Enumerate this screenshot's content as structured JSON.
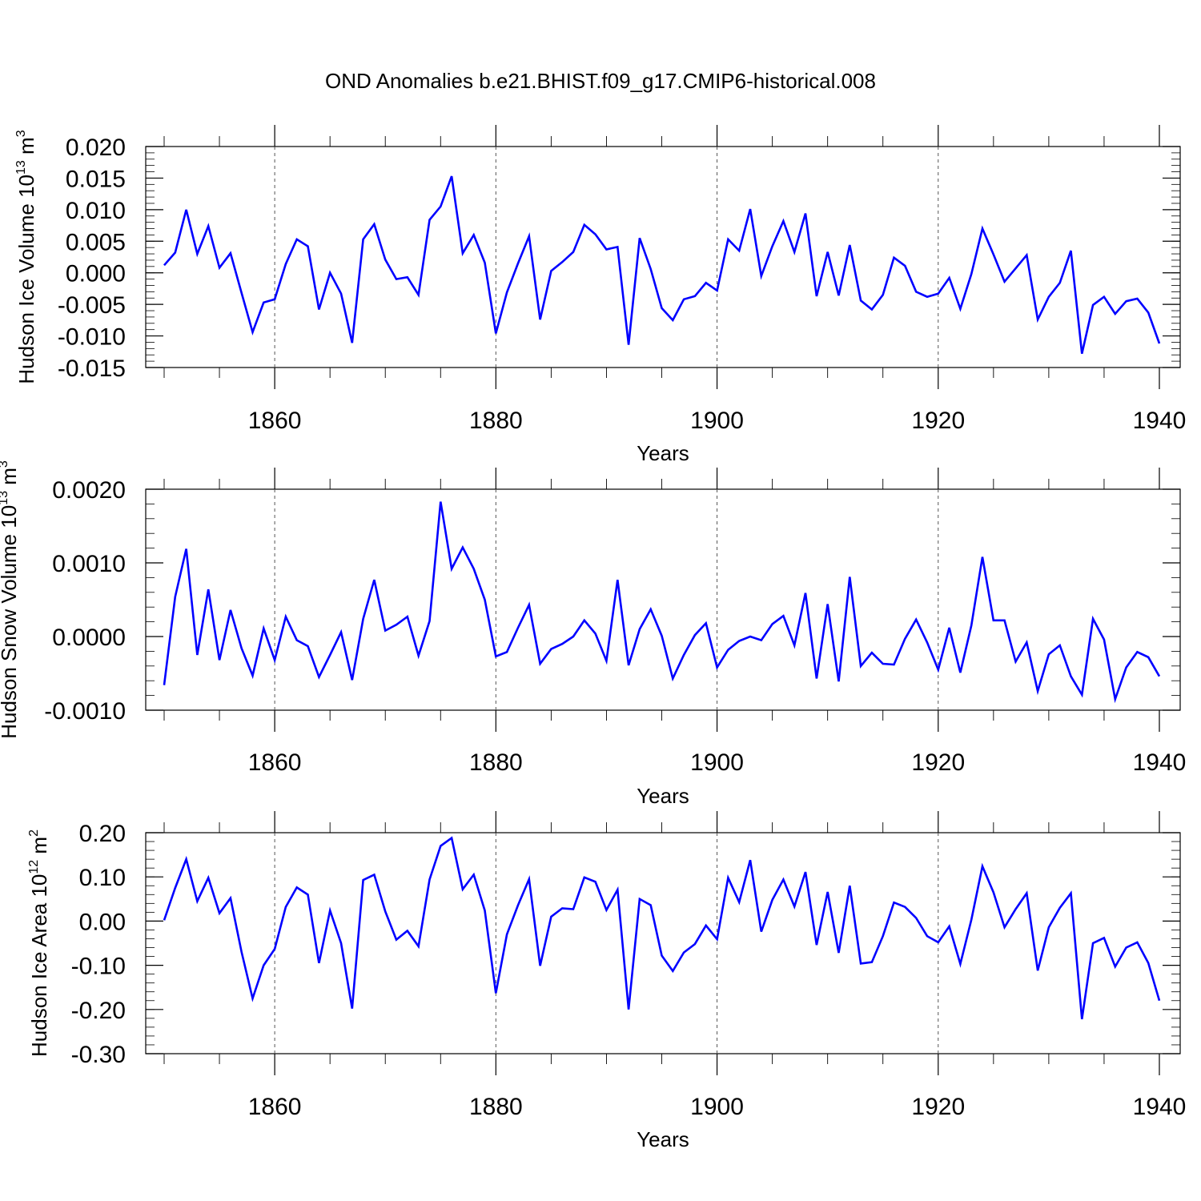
{
  "figure": {
    "title": "OND Anomalies b.e21.BHIST.f09_g17.CMIP6-historical.008",
    "line_color": "#0000ff"
  },
  "chart_data": [
    {
      "type": "line",
      "title": "OND Anomalies b.e21.BHIST.f09_g17.CMIP6-historical.008",
      "ylabel": "Hudson Ice Volume 10",
      "ylabel_exp": "13",
      "ylabel_unit": " m",
      "ylabel_unit_exp": "3",
      "xlabel": "Years",
      "xlim": [
        1850,
        1940
      ],
      "ylim": [
        -0.015,
        0.02
      ],
      "yticks": [
        -0.015,
        -0.01,
        -0.005,
        0.0,
        0.005,
        0.01,
        0.015,
        0.02
      ],
      "ytick_labels": [
        "-0.015",
        "-0.010",
        "-0.005",
        "0.000",
        "0.005",
        "0.010",
        "0.015",
        "0.020"
      ],
      "yminor_step": 0.001,
      "xticks": [
        1860,
        1880,
        1900,
        1920,
        1940
      ],
      "xtick_labels": [
        "1860",
        "1880",
        "1900",
        "1920",
        "1940"
      ],
      "gridlines_x": [
        1860,
        1880,
        1900,
        1920
      ],
      "x_start": 1850,
      "values": [
        0.0012,
        0.0032,
        0.01,
        0.003,
        0.0074,
        0.0008,
        0.0031,
        -0.0032,
        -0.0094,
        -0.0047,
        -0.0042,
        0.0014,
        0.0053,
        0.0042,
        -0.0058,
        0.0,
        -0.0033,
        -0.0111,
        0.0053,
        0.0077,
        0.0021,
        -0.001,
        -0.0007,
        -0.0035,
        0.0084,
        0.0105,
        0.0153,
        0.0031,
        0.006,
        0.0016,
        -0.0096,
        -0.0031,
        0.0015,
        0.0058,
        -0.0074,
        0.0003,
        0.0017,
        0.0033,
        0.0076,
        0.0061,
        0.0037,
        0.0041,
        -0.0114,
        0.0055,
        0.0006,
        -0.0056,
        -0.0075,
        -0.0042,
        -0.0037,
        -0.0016,
        -0.0028,
        0.0053,
        0.0035,
        0.0101,
        -0.0005,
        0.0042,
        0.0082,
        0.0033,
        0.0094,
        -0.0037,
        0.0033,
        -0.0036,
        0.0044,
        -0.0044,
        -0.0058,
        -0.0035,
        0.0024,
        0.0011,
        -0.003,
        -0.0038,
        -0.0033,
        -0.0008,
        -0.0057,
        -0.0002,
        0.007,
        0.0029,
        -0.0014,
        0.0007,
        0.0028,
        -0.0074,
        -0.0038,
        -0.0016,
        0.0035,
        -0.0128,
        -0.0051,
        -0.0038,
        -0.0065,
        -0.0045,
        -0.0041,
        -0.0063,
        -0.0112
      ]
    },
    {
      "type": "line",
      "ylabel": "Hudson Snow Volume 10",
      "ylabel_exp": "13",
      "ylabel_unit": " m",
      "ylabel_unit_exp": "3",
      "xlabel": "Years",
      "xlim": [
        1850,
        1940
      ],
      "ylim": [
        -0.001,
        0.002
      ],
      "yticks": [
        -0.001,
        0.0,
        0.001,
        0.002
      ],
      "ytick_labels": [
        "-0.0010",
        "0.0000",
        "0.0010",
        "0.0020"
      ],
      "yminor_step": 0.0002,
      "xticks": [
        1860,
        1880,
        1900,
        1920,
        1940
      ],
      "xtick_labels": [
        "1860",
        "1880",
        "1900",
        "1920",
        "1940"
      ],
      "gridlines_x": [
        1860,
        1880,
        1900,
        1920
      ],
      "x_start": 1850,
      "values": [
        -0.00066,
        0.00054,
        0.00119,
        -0.00025,
        0.00064,
        -0.00032,
        0.00036,
        -0.00016,
        -0.00053,
        0.00011,
        -0.00032,
        0.00027,
        -5e-05,
        -0.00013,
        -0.00055,
        -0.00025,
        6e-05,
        -0.00059,
        0.00024,
        0.00077,
        8e-05,
        0.00016,
        0.00027,
        -0.00026,
        0.00021,
        0.00183,
        0.00092,
        0.00121,
        0.00092,
        0.0005,
        -0.00027,
        -0.00021,
        0.00012,
        0.00043,
        -0.00037,
        -0.00017,
        -0.0001,
        0.0,
        0.00022,
        4e-05,
        -0.00033,
        0.00077,
        -0.00039,
        0.0001,
        0.00037,
        1e-05,
        -0.00057,
        -0.00025,
        2e-05,
        0.00018,
        -0.00042,
        -0.00018,
        -6e-05,
        0.0,
        -5e-05,
        0.00017,
        0.00028,
        -0.00012,
        0.00059,
        -0.00057,
        0.00044,
        -0.00061,
        0.00081,
        -0.0004,
        -0.00022,
        -0.00037,
        -0.00038,
        -3e-05,
        0.00023,
        -8e-05,
        -0.00045,
        0.00012,
        -0.00049,
        0.00015,
        0.00108,
        0.00022,
        0.00022,
        -0.00034,
        -8e-05,
        -0.00074,
        -0.00024,
        -0.00012,
        -0.00054,
        -0.00079,
        0.00024,
        -4e-05,
        -0.00085,
        -0.00042,
        -0.00021,
        -0.00028,
        -0.00054
      ]
    },
    {
      "type": "line",
      "ylabel": "Hudson Ice Area 10",
      "ylabel_exp": "12",
      "ylabel_unit": " m",
      "ylabel_unit_exp": "2",
      "xlabel": "Years",
      "xlim": [
        1850,
        1940
      ],
      "ylim": [
        -0.3,
        0.2
      ],
      "yticks": [
        -0.3,
        -0.2,
        -0.1,
        0.0,
        0.1,
        0.2
      ],
      "ytick_labels": [
        "-0.30",
        "-0.20",
        "-0.10",
        "0.00",
        "0.10",
        "0.20"
      ],
      "yminor_step": 0.02,
      "xticks": [
        1860,
        1880,
        1900,
        1920,
        1940
      ],
      "xtick_labels": [
        "1860",
        "1880",
        "1900",
        "1920",
        "1940"
      ],
      "gridlines_x": [
        1860,
        1880,
        1900,
        1920
      ],
      "x_start": 1850,
      "values": [
        0.002,
        0.075,
        0.14,
        0.045,
        0.098,
        0.018,
        0.052,
        -0.07,
        -0.175,
        -0.1,
        -0.063,
        0.032,
        0.076,
        0.06,
        -0.095,
        0.024,
        -0.05,
        -0.198,
        0.093,
        0.105,
        0.022,
        -0.042,
        -0.022,
        -0.057,
        0.094,
        0.17,
        0.188,
        0.072,
        0.105,
        0.024,
        -0.163,
        -0.03,
        0.036,
        0.095,
        -0.101,
        0.01,
        0.029,
        0.027,
        0.099,
        0.089,
        0.025,
        0.071,
        -0.2,
        0.05,
        0.036,
        -0.078,
        -0.113,
        -0.071,
        -0.052,
        -0.01,
        -0.041,
        0.098,
        0.043,
        0.138,
        -0.024,
        0.048,
        0.094,
        0.033,
        0.111,
        -0.054,
        0.066,
        -0.072,
        0.08,
        -0.096,
        -0.093,
        -0.034,
        0.042,
        0.032,
        0.007,
        -0.034,
        -0.048,
        -0.012,
        -0.097,
        0.003,
        0.124,
        0.065,
        -0.014,
        0.027,
        0.063,
        -0.112,
        -0.014,
        0.03,
        0.063,
        -0.222,
        -0.05,
        -0.038,
        -0.103,
        -0.06,
        -0.048,
        -0.095,
        -0.18
      ]
    }
  ]
}
